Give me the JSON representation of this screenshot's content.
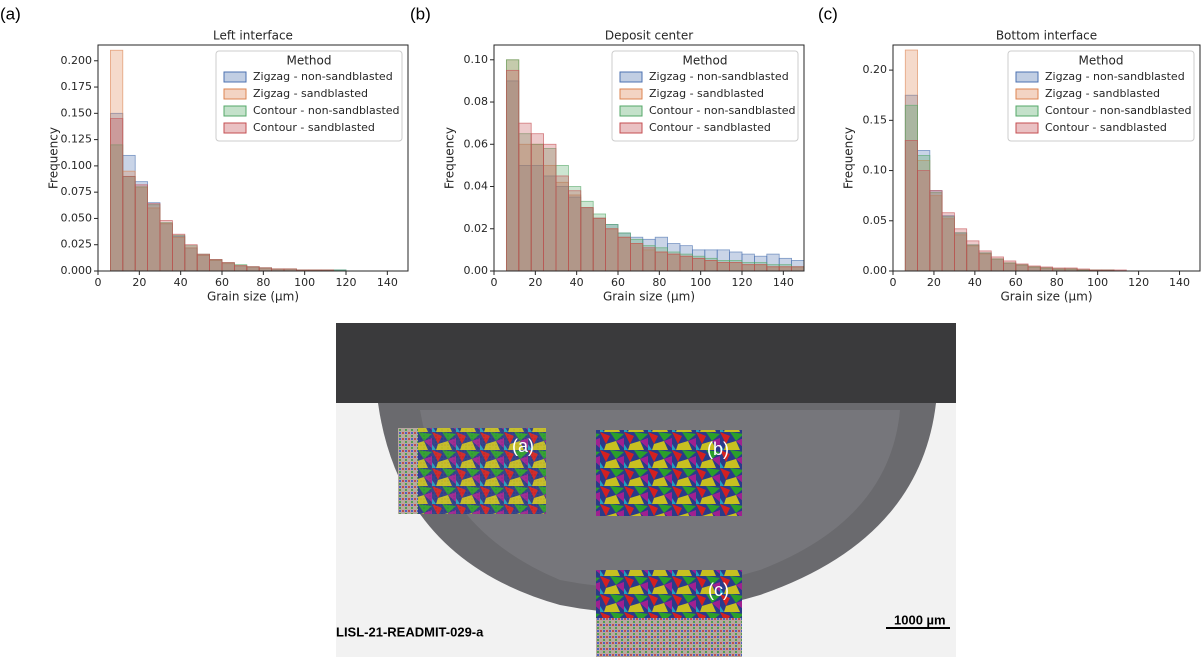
{
  "panel_labels": [
    "(a)",
    "(b)",
    "(c)"
  ],
  "chart_data": [
    {
      "type": "histogram",
      "title": "Left interface",
      "xlabel": "Grain size (µm)",
      "ylabel": "Frequency",
      "bins": [
        6,
        12,
        18,
        24,
        30,
        36,
        42,
        48,
        54,
        60,
        66,
        72,
        78,
        84,
        90,
        96,
        102,
        108,
        114,
        120,
        126,
        132,
        138,
        144,
        150
      ],
      "series": [
        {
          "name": "Zigzag - non-sandblasted",
          "color": "#4c72b0",
          "values": [
            0.15,
            0.11,
            0.085,
            0.065,
            0.045,
            0.033,
            0.022,
            0.015,
            0.01,
            0.007,
            0.005,
            0.004,
            0.003,
            0.002,
            0.002,
            0.001,
            0.001,
            0.001,
            0.001,
            0,
            0,
            0,
            0,
            0
          ]
        },
        {
          "name": "Zigzag - sandblasted",
          "color": "#dd8452",
          "values": [
            0.21,
            0.095,
            0.08,
            0.06,
            0.045,
            0.032,
            0.022,
            0.015,
            0.01,
            0.007,
            0.005,
            0.004,
            0.003,
            0.002,
            0.002,
            0.001,
            0.001,
            0.001,
            0,
            0,
            0,
            0,
            0,
            0
          ]
        },
        {
          "name": "Contour - non-sandblasted",
          "color": "#55a868",
          "values": [
            0.12,
            0.09,
            0.08,
            0.063,
            0.046,
            0.034,
            0.024,
            0.016,
            0.011,
            0.008,
            0.006,
            0.004,
            0.003,
            0.002,
            0.002,
            0.001,
            0.001,
            0.001,
            0.001,
            0,
            0,
            0,
            0,
            0
          ]
        },
        {
          "name": "Contour - sandblasted",
          "color": "#c44e52",
          "values": [
            0.145,
            0.09,
            0.082,
            0.064,
            0.048,
            0.035,
            0.025,
            0.016,
            0.011,
            0.008,
            0.005,
            0.004,
            0.003,
            0.002,
            0.002,
            0.001,
            0.001,
            0.001,
            0,
            0,
            0,
            0,
            0,
            0
          ]
        }
      ],
      "xlim": [
        0,
        150
      ],
      "xticks": [
        0,
        20,
        40,
        60,
        80,
        100,
        120,
        140
      ],
      "ylim": [
        0,
        0.215
      ],
      "yticks": [
        {
          "value": 0,
          "label": "0.000"
        },
        0.025,
        {
          "value": 0.05,
          "label": "0.050"
        },
        0.075,
        {
          "value": 0.1,
          "label": "0.100"
        },
        0.125,
        {
          "value": 0.15,
          "label": "0.150"
        },
        0.175,
        {
          "value": 0.2,
          "label": "0.200"
        }
      ],
      "legend_title": "Method",
      "legend": "upper right"
    },
    {
      "type": "histogram",
      "title": "Deposit center",
      "xlabel": "Grain size (µm)",
      "ylabel": "Frequency",
      "bins": [
        6,
        12,
        18,
        24,
        30,
        36,
        42,
        48,
        54,
        60,
        66,
        72,
        78,
        84,
        90,
        96,
        102,
        108,
        114,
        120,
        126,
        132,
        138,
        144,
        150
      ],
      "series": [
        {
          "name": "Zigzag - non-sandblasted",
          "color": "#4c72b0",
          "values": [
            0.09,
            0.05,
            0.05,
            0.045,
            0.04,
            0.035,
            0.03,
            0.025,
            0.022,
            0.018,
            0.016,
            0.015,
            0.016,
            0.013,
            0.012,
            0.01,
            0.01,
            0.01,
            0.009,
            0.008,
            0.007,
            0.008,
            0.006,
            0.005
          ]
        },
        {
          "name": "Zigzag - sandblasted",
          "color": "#dd8452",
          "values": [
            0.1,
            0.06,
            0.06,
            0.05,
            0.042,
            0.036,
            0.03,
            0.025,
            0.02,
            0.016,
            0.013,
            0.01,
            0.009,
            0.008,
            0.007,
            0.006,
            0.005,
            0.004,
            0.004,
            0.003,
            0.003,
            0.002,
            0.002,
            0.002
          ]
        },
        {
          "name": "Contour - non-sandblasted",
          "color": "#55a868",
          "values": [
            0.1,
            0.065,
            0.06,
            0.058,
            0.05,
            0.04,
            0.033,
            0.027,
            0.022,
            0.018,
            0.015,
            0.012,
            0.011,
            0.009,
            0.008,
            0.007,
            0.006,
            0.005,
            0.005,
            0.004,
            0.004,
            0.003,
            0.003,
            0.002
          ]
        },
        {
          "name": "Contour - sandblasted",
          "color": "#c44e52",
          "values": [
            0.095,
            0.07,
            0.065,
            0.06,
            0.045,
            0.038,
            0.03,
            0.025,
            0.02,
            0.016,
            0.013,
            0.011,
            0.009,
            0.008,
            0.007,
            0.006,
            0.005,
            0.004,
            0.004,
            0.003,
            0.003,
            0.002,
            0.002,
            0.002
          ]
        }
      ],
      "xlim": [
        0,
        150
      ],
      "xticks": [
        0,
        20,
        40,
        60,
        80,
        100,
        120,
        140
      ],
      "ylim": [
        0,
        0.107
      ],
      "yticks": [
        {
          "value": 0,
          "label": "0.00"
        },
        0.02,
        0.04,
        0.06,
        0.08,
        {
          "value": 0.1,
          "label": "0.10"
        }
      ],
      "legend_title": "Method",
      "legend": "upper right"
    },
    {
      "type": "histogram",
      "title": "Bottom interface",
      "xlabel": "Grain size (µm)",
      "ylabel": "Frequency",
      "bins": [
        6,
        12,
        18,
        24,
        30,
        36,
        42,
        48,
        54,
        60,
        66,
        72,
        78,
        84,
        90,
        96,
        102,
        108,
        114,
        120,
        126,
        132,
        138,
        144,
        150
      ],
      "series": [
        {
          "name": "Zigzag - non-sandblasted",
          "color": "#4c72b0",
          "values": [
            0.175,
            0.12,
            0.08,
            0.055,
            0.038,
            0.026,
            0.018,
            0.012,
            0.008,
            0.006,
            0.004,
            0.003,
            0.002,
            0.002,
            0.001,
            0.001,
            0.001,
            0,
            0,
            0,
            0,
            0,
            0,
            0
          ]
        },
        {
          "name": "Zigzag - sandblasted",
          "color": "#dd8452",
          "values": [
            0.22,
            0.11,
            0.075,
            0.052,
            0.036,
            0.025,
            0.017,
            0.012,
            0.008,
            0.006,
            0.004,
            0.003,
            0.002,
            0.002,
            0.001,
            0.001,
            0.001,
            0,
            0,
            0,
            0,
            0,
            0,
            0
          ]
        },
        {
          "name": "Contour - non-sandblasted",
          "color": "#55a868",
          "values": [
            0.165,
            0.115,
            0.078,
            0.054,
            0.038,
            0.026,
            0.018,
            0.012,
            0.008,
            0.006,
            0.004,
            0.003,
            0.002,
            0.002,
            0.001,
            0.001,
            0.001,
            0,
            0,
            0,
            0,
            0,
            0,
            0
          ]
        },
        {
          "name": "Contour - sandblasted",
          "color": "#c44e52",
          "values": [
            0.13,
            0.1,
            0.08,
            0.058,
            0.042,
            0.03,
            0.02,
            0.014,
            0.01,
            0.007,
            0.005,
            0.004,
            0.003,
            0.003,
            0.002,
            0.001,
            0.001,
            0.001,
            0,
            0,
            0,
            0,
            0,
            0
          ]
        }
      ],
      "xlim": [
        0,
        150
      ],
      "xticks": [
        0,
        20,
        40,
        60,
        80,
        100,
        120,
        140
      ],
      "ylim": [
        0,
        0.225
      ],
      "yticks": [
        {
          "value": 0,
          "label": "0.00"
        },
        0.05,
        {
          "value": 0.1,
          "label": "0.10"
        },
        {
          "value": 0.15,
          "label": "0.15"
        },
        {
          "value": 0.2,
          "label": "0.20"
        }
      ],
      "legend_title": "Method",
      "legend": "upper right"
    }
  ],
  "micrograph": {
    "region_labels": [
      "(a)",
      "(b)",
      "(c)"
    ],
    "sample_id": "LISL-21-READMIT-029-a",
    "scale_bar": "1000 µm"
  }
}
